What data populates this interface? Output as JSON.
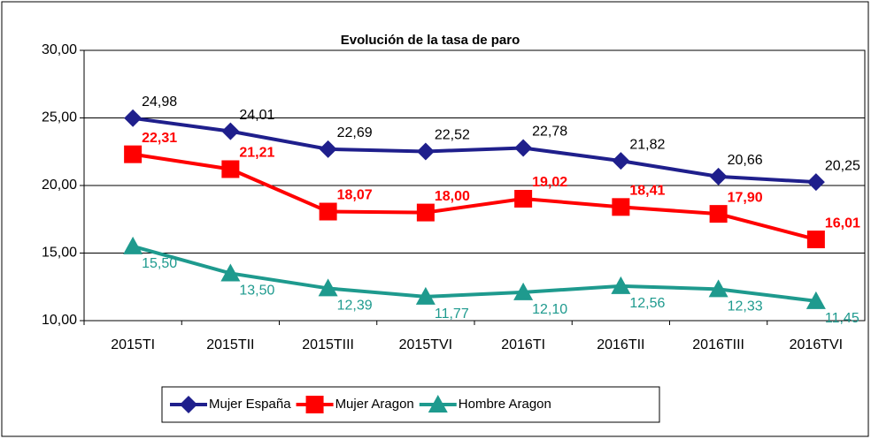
{
  "chart_data": {
    "type": "line",
    "title": "Evolución de la tasa de paro",
    "categories": [
      "2015TI",
      "2015TII",
      "2015TIII",
      "2015TVI",
      "2016TI",
      "2016TII",
      "2016TIII",
      "2016TVI"
    ],
    "series": [
      {
        "name": "Mujer España",
        "color": "#1f1f8c",
        "marker": "diamond",
        "label_color": "#000000",
        "label_bold": false,
        "label_pos": "above",
        "values": [
          24.98,
          24.01,
          22.69,
          22.52,
          22.78,
          21.82,
          20.66,
          20.25
        ],
        "value_labels": [
          "24,98",
          "24,01",
          "22,69",
          "22,52",
          "22,78",
          "21,82",
          "20,66",
          "20,25"
        ]
      },
      {
        "name": "Mujer Aragon",
        "color": "#ff0000",
        "marker": "square",
        "label_color": "#ff0000",
        "label_bold": true,
        "label_pos": "above",
        "values": [
          22.31,
          21.21,
          18.07,
          18.0,
          19.02,
          18.41,
          17.9,
          16.01
        ],
        "value_labels": [
          "22,31",
          "21,21",
          "18,07",
          "18,00",
          "19,02",
          "18,41",
          "17,90",
          "16,01"
        ]
      },
      {
        "name": "Hombre Aragon",
        "color": "#1e9a8e",
        "marker": "triangle",
        "label_color": "#1e9a8e",
        "label_bold": false,
        "label_pos": "below",
        "values": [
          15.5,
          13.5,
          12.39,
          11.77,
          12.1,
          12.56,
          12.33,
          11.45
        ],
        "value_labels": [
          "15,50",
          "13,50",
          "12,39",
          "11,77",
          "12,10",
          "12,56",
          "12,33",
          "11,45"
        ]
      }
    ],
    "ylim": [
      10,
      30
    ],
    "yticks": [
      {
        "value": 10,
        "label": "10,00"
      },
      {
        "value": 15,
        "label": "15,00"
      },
      {
        "value": 20,
        "label": "20,00"
      },
      {
        "value": 25,
        "label": "25,00"
      },
      {
        "value": 30,
        "label": "30,00"
      }
    ],
    "grid": true,
    "legend": "bottom"
  }
}
